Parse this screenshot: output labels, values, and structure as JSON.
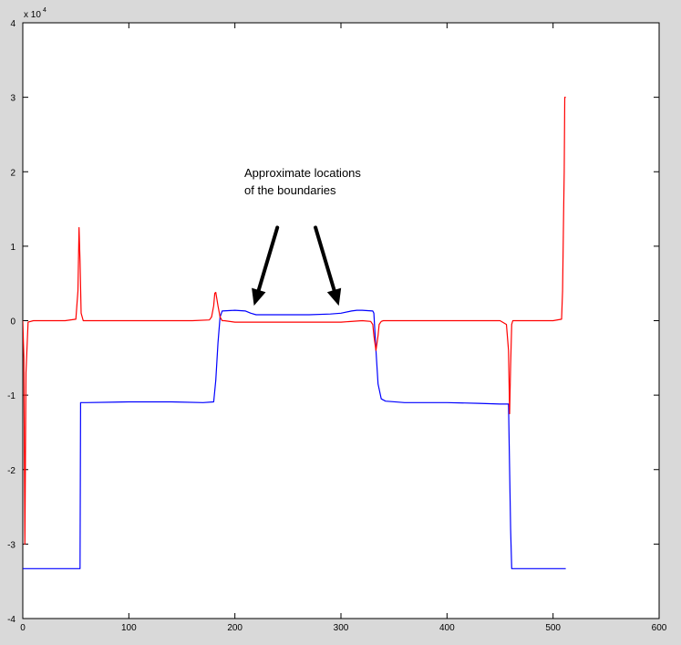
{
  "chart_data": {
    "type": "line",
    "title": "",
    "xlabel": "",
    "ylabel": "",
    "xlim": [
      0,
      600
    ],
    "ylim": [
      -4,
      4
    ],
    "y_multiplier_label": "x 10",
    "y_multiplier_exponent": "4",
    "x_ticks": [
      "0",
      "100",
      "200",
      "300",
      "400",
      "500",
      "600"
    ],
    "y_ticks": [
      "-4",
      "-3",
      "-2",
      "-1",
      "0",
      "1",
      "2",
      "3",
      "4"
    ],
    "grid": false,
    "legend": "none",
    "series": [
      {
        "color": "#0000ff",
        "x": [
          0,
          1,
          2,
          3,
          20,
          40,
          54,
          54.5,
          55,
          60,
          100,
          140,
          170,
          180,
          182,
          184,
          186,
          188,
          200,
          210,
          215,
          220,
          230,
          250,
          270,
          290,
          300,
          310,
          315,
          320,
          330,
          331,
          333,
          335,
          338,
          342,
          360,
          400,
          430,
          450,
          458,
          459,
          460,
          461,
          470,
          490,
          512
        ],
        "y": [
          -3.33,
          -3.33,
          -3.33,
          -3.33,
          -3.33,
          -3.33,
          -3.33,
          -1.1,
          -1.1,
          -1.1,
          -1.09,
          -1.09,
          -1.1,
          -1.09,
          -0.8,
          -0.3,
          0.05,
          0.13,
          0.14,
          0.13,
          0.1,
          0.08,
          0.08,
          0.08,
          0.08,
          0.09,
          0.1,
          0.13,
          0.14,
          0.14,
          0.13,
          0.1,
          -0.4,
          -0.85,
          -1.05,
          -1.08,
          -1.1,
          -1.1,
          -1.11,
          -1.12,
          -1.12,
          -2.0,
          -2.8,
          -3.33,
          -3.33,
          -3.33,
          -3.33
        ]
      },
      {
        "color": "#ff0000",
        "x": [
          0,
          1,
          2,
          3,
          5,
          10,
          20,
          40,
          50,
          52,
          53,
          54,
          55,
          57,
          60,
          100,
          160,
          176,
          178,
          180,
          181,
          182,
          184,
          186,
          188,
          190,
          200,
          250,
          300,
          320,
          328,
          330,
          331,
          333,
          335,
          336,
          338,
          340,
          360,
          400,
          450,
          456,
          458,
          459,
          460,
          461,
          462,
          464,
          466,
          470,
          500,
          508,
          509,
          510,
          510.5,
          511,
          512
        ],
        "y": [
          0.0,
          -0.5,
          -3.0,
          -0.7,
          -0.02,
          0.0,
          0.0,
          0.0,
          0.02,
          0.4,
          1.25,
          0.8,
          0.1,
          0.0,
          0.0,
          0.0,
          0.0,
          0.01,
          0.05,
          0.2,
          0.37,
          0.38,
          0.2,
          0.05,
          0.0,
          0.0,
          -0.02,
          -0.02,
          -0.02,
          0.0,
          -0.01,
          -0.05,
          -0.2,
          -0.4,
          -0.2,
          -0.05,
          -0.01,
          0.0,
          0.0,
          0.0,
          0.0,
          -0.05,
          -0.4,
          -1.25,
          -0.6,
          -0.05,
          0.0,
          0.0,
          0.0,
          0.0,
          0.0,
          0.02,
          0.4,
          1.5,
          2.0,
          3.0,
          3.0
        ]
      }
    ],
    "annotation": {
      "lines": [
        "Approximate locations",
        "of the boundaries"
      ],
      "arrows": [
        {
          "from": [
            240,
            1.25
          ],
          "to": [
            218,
            0.2
          ]
        },
        {
          "from": [
            276,
            1.25
          ],
          "to": [
            298,
            0.2
          ]
        }
      ]
    }
  }
}
